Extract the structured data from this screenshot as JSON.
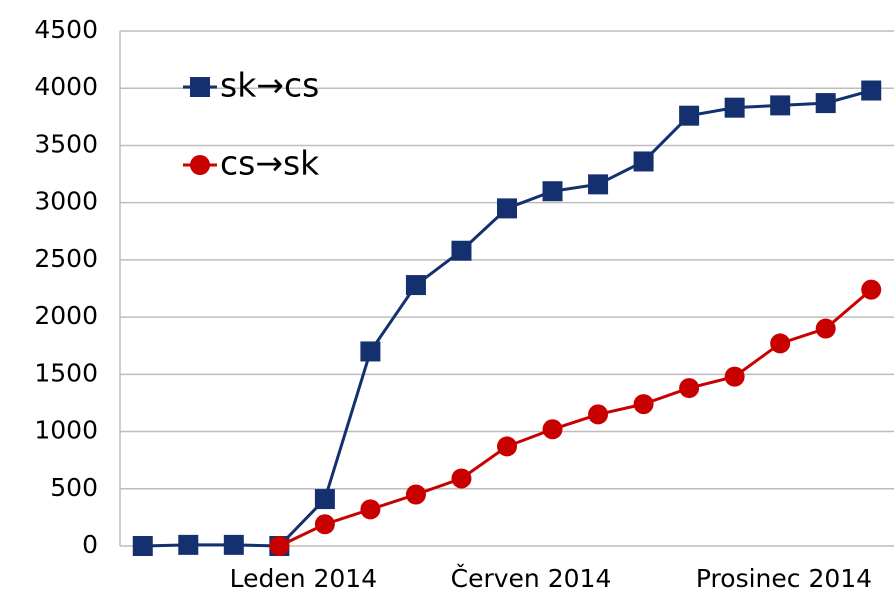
{
  "chart_data": {
    "type": "line",
    "categories": [
      null,
      null,
      null,
      "Leden 2014",
      null,
      null,
      null,
      null,
      "Červen 2014",
      null,
      null,
      null,
      null,
      null,
      "Prosinec 2014",
      null,
      null
    ],
    "series": [
      {
        "name": "sk→cs",
        "color": "#14306e",
        "marker": "square",
        "values": [
          0,
          10,
          10,
          0,
          410,
          1700,
          2280,
          2580,
          2950,
          3100,
          3160,
          3360,
          3760,
          3830,
          3850,
          3870,
          3980
        ]
      },
      {
        "name": "cs→sk",
        "color": "#c80000",
        "marker": "circle",
        "values": [
          null,
          null,
          null,
          0,
          190,
          320,
          450,
          590,
          870,
          1020,
          1150,
          1240,
          1380,
          1480,
          1770,
          1900,
          2240
        ]
      }
    ],
    "ylim": [
      0,
      4500
    ],
    "yticks": [
      0,
      500,
      1000,
      1500,
      2000,
      2500,
      3000,
      3500,
      4000,
      4500
    ],
    "grid": true,
    "legend": "top-left"
  }
}
